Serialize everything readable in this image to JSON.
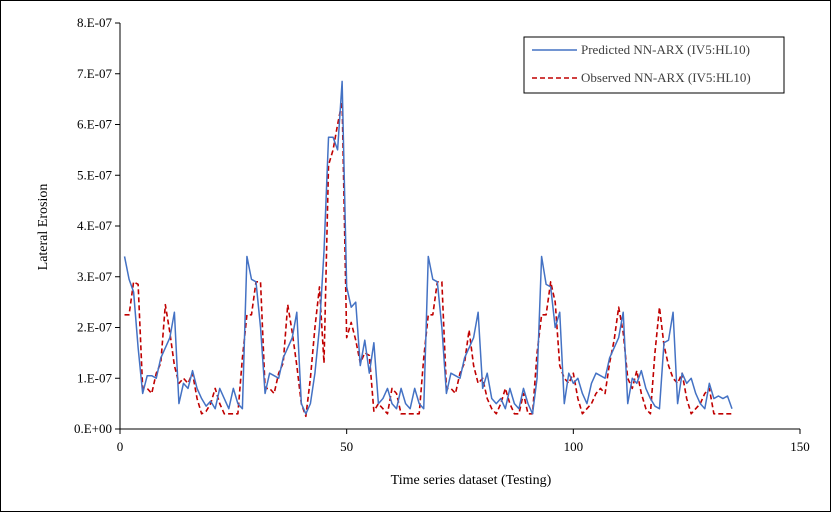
{
  "chart_data": {
    "type": "line",
    "xlabel": "Time series dataset (Testing)",
    "ylabel": "Lateral Erosion",
    "xlim": [
      0,
      150
    ],
    "ylim": [
      0,
      8e-07
    ],
    "x_ticks": [
      0,
      50,
      100,
      150
    ],
    "x_tick_labels": [
      "0",
      "50",
      "100",
      "150"
    ],
    "y_ticks": [
      0,
      1e-07,
      2e-07,
      3e-07,
      4e-07,
      5e-07,
      6e-07,
      7e-07,
      8e-07
    ],
    "y_tick_labels": [
      "0.E+00",
      "1.E-07",
      "2.E-07",
      "3.E-07",
      "4.E-07",
      "5.E-07",
      "6.E-07",
      "7.E-07",
      "8.E-07"
    ],
    "grid": false,
    "legend_position": "top-right",
    "colors": {
      "predicted": "#4472C4",
      "observed": "#C00000"
    },
    "series": [
      {
        "name": "Predicted NN-ARX (IV5:HL10)",
        "style": "solid",
        "x": [
          1,
          2,
          3,
          4,
          5,
          6,
          7,
          8,
          9,
          10,
          11,
          12,
          13,
          14,
          15,
          16,
          17,
          18,
          19,
          20,
          21,
          22,
          23,
          24,
          25,
          26,
          27,
          28,
          29,
          30,
          31,
          32,
          33,
          34,
          35,
          36,
          37,
          38,
          39,
          40,
          41,
          42,
          43,
          44,
          45,
          46,
          47,
          48,
          49,
          50,
          51,
          52,
          53,
          54,
          55,
          56,
          57,
          58,
          59,
          60,
          61,
          62,
          63,
          64,
          65,
          66,
          67,
          68,
          69,
          70,
          71,
          72,
          73,
          74,
          75,
          76,
          77,
          78,
          79,
          80,
          81,
          82,
          83,
          84,
          85,
          86,
          87,
          88,
          89,
          90,
          91,
          92,
          93,
          94,
          95,
          96,
          97,
          98,
          99,
          100,
          101,
          102,
          103,
          104,
          105,
          106,
          107,
          108,
          109,
          110,
          111,
          112,
          113,
          114,
          115,
          116,
          117,
          118,
          119,
          120,
          121,
          122,
          123,
          124,
          125,
          126,
          127,
          128,
          129,
          130,
          131,
          132,
          133,
          134,
          135
        ],
        "values": [
          3.4e-07,
          2.95e-07,
          2.7e-07,
          1.6e-07,
          7e-08,
          1.05e-07,
          1.05e-07,
          1e-07,
          1.4e-07,
          1.6e-07,
          1.8e-07,
          2.3e-07,
          5e-08,
          9e-08,
          8e-08,
          1.15e-07,
          8e-08,
          6e-08,
          4.5e-08,
          5.5e-08,
          4e-08,
          8e-08,
          6e-08,
          4e-08,
          8e-08,
          5e-08,
          4e-08,
          3.4e-07,
          2.95e-07,
          2.9e-07,
          2e-07,
          7e-08,
          1.1e-07,
          1.05e-07,
          1e-07,
          1.4e-07,
          1.6e-07,
          1.8e-07,
          2.3e-07,
          5e-08,
          3e-08,
          5e-08,
          1.1e-07,
          2e-07,
          3.5e-07,
          5.75e-07,
          5.75e-07,
          5.5e-07,
          6.85e-07,
          2.8e-07,
          2.4e-07,
          2.5e-07,
          1.25e-07,
          1.75e-07,
          1.1e-07,
          1.7e-07,
          5e-08,
          6e-08,
          8e-08,
          5e-08,
          4e-08,
          8e-08,
          5e-08,
          4e-08,
          8e-08,
          5e-08,
          4e-08,
          3.4e-07,
          2.95e-07,
          2.9e-07,
          2e-07,
          7e-08,
          1.1e-07,
          1.05e-07,
          1e-07,
          1.4e-07,
          1.6e-07,
          1.8e-07,
          2.3e-07,
          8e-08,
          1.1e-07,
          6e-08,
          5e-08,
          6e-08,
          4e-08,
          8e-08,
          5e-08,
          4e-08,
          8e-08,
          5e-08,
          3e-08,
          1e-07,
          3.4e-07,
          2.85e-07,
          2.8e-07,
          2e-07,
          2.3e-07,
          5e-08,
          1.1e-07,
          9e-08,
          1e-07,
          7e-08,
          5e-08,
          9e-08,
          1.1e-07,
          1.05e-07,
          1e-07,
          1.4e-07,
          1.6e-07,
          1.8e-07,
          2.3e-07,
          5e-08,
          1e-07,
          9e-08,
          1.15e-07,
          8e-08,
          6e-08,
          4.5e-08,
          4e-08,
          1.7e-07,
          1.75e-07,
          2.3e-07,
          5e-08,
          1.1e-07,
          9e-08,
          1e-07,
          7e-08,
          5e-08,
          4e-08,
          9e-08,
          6e-08,
          6.5e-08,
          6e-08,
          6.5e-08,
          4e-08
        ]
      },
      {
        "name": "Observed NN-ARX (IV5:HL10)",
        "style": "dashed",
        "x": [
          1,
          2,
          3,
          4,
          5,
          6,
          7,
          8,
          9,
          10,
          11,
          12,
          13,
          14,
          15,
          16,
          17,
          18,
          19,
          20,
          21,
          22,
          23,
          24,
          25,
          26,
          27,
          28,
          29,
          30,
          31,
          32,
          33,
          34,
          35,
          36,
          37,
          38,
          39,
          40,
          41,
          42,
          43,
          44,
          45,
          46,
          47,
          48,
          49,
          50,
          51,
          52,
          53,
          54,
          55,
          56,
          57,
          58,
          59,
          60,
          61,
          62,
          63,
          64,
          65,
          66,
          67,
          68,
          69,
          70,
          71,
          72,
          73,
          74,
          75,
          76,
          77,
          78,
          79,
          80,
          81,
          82,
          83,
          84,
          85,
          86,
          87,
          88,
          89,
          90,
          91,
          92,
          93,
          94,
          95,
          96,
          97,
          98,
          99,
          100,
          101,
          102,
          103,
          104,
          105,
          106,
          107,
          108,
          109,
          110,
          111,
          112,
          113,
          114,
          115,
          116,
          117,
          118,
          119,
          120,
          121,
          122,
          123,
          124,
          125,
          126,
          127,
          128,
          129,
          130,
          131,
          132,
          133,
          134,
          135
        ],
        "values": [
          2.25e-07,
          2.25e-07,
          2.9e-07,
          2.85e-07,
          8e-08,
          8e-08,
          7e-08,
          1.1e-07,
          1.3e-07,
          2.45e-07,
          1.9e-07,
          1.25e-07,
          9e-08,
          1e-07,
          9e-08,
          1.1e-07,
          6e-08,
          3e-08,
          3.5e-08,
          5e-08,
          8e-08,
          5e-08,
          3e-08,
          3e-08,
          3e-08,
          3e-08,
          1.4e-07,
          2.25e-07,
          2.25e-07,
          2.9e-07,
          2.9e-07,
          8e-08,
          8e-08,
          7e-08,
          1.1e-07,
          1.3e-07,
          2.45e-07,
          1.9e-07,
          1.25e-07,
          5e-08,
          2.5e-08,
          1e-07,
          2e-07,
          2.8e-07,
          1.3e-07,
          5.2e-07,
          5.5e-07,
          6e-07,
          6.45e-07,
          1.8e-07,
          2.1e-07,
          1.75e-07,
          1.3e-07,
          1.5e-07,
          1.45e-07,
          3.5e-08,
          5e-08,
          4e-08,
          3e-08,
          8e-08,
          7e-08,
          3e-08,
          3e-08,
          3e-08,
          3e-08,
          3e-08,
          1.4e-07,
          2.25e-07,
          2.25e-07,
          2.9e-07,
          2.9e-07,
          8e-08,
          8e-08,
          7e-08,
          1.1e-07,
          1.3e-07,
          1.95e-07,
          1.25e-07,
          9e-08,
          1e-07,
          6e-08,
          4e-08,
          3e-08,
          5e-08,
          8e-08,
          5e-08,
          3e-08,
          3e-08,
          7e-08,
          3e-08,
          3e-08,
          1.5e-07,
          2.25e-07,
          2.25e-07,
          2.9e-07,
          2.5e-07,
          1.25e-07,
          1e-07,
          9e-08,
          1.1e-07,
          6e-08,
          3e-08,
          4e-08,
          5e-08,
          7e-08,
          8e-08,
          7e-08,
          1.3e-07,
          1.75e-07,
          2.4e-07,
          1.9e-07,
          1e-07,
          8e-08,
          1.15e-07,
          7e-08,
          4e-08,
          3e-08,
          1.5e-07,
          2.4e-07,
          1.65e-07,
          1.25e-07,
          1e-07,
          9e-08,
          1.1e-07,
          6e-08,
          3e-08,
          4e-08,
          5e-08,
          7e-08,
          8e-08,
          3e-08,
          3e-08,
          3e-08,
          3e-08,
          3e-08
        ]
      }
    ]
  }
}
